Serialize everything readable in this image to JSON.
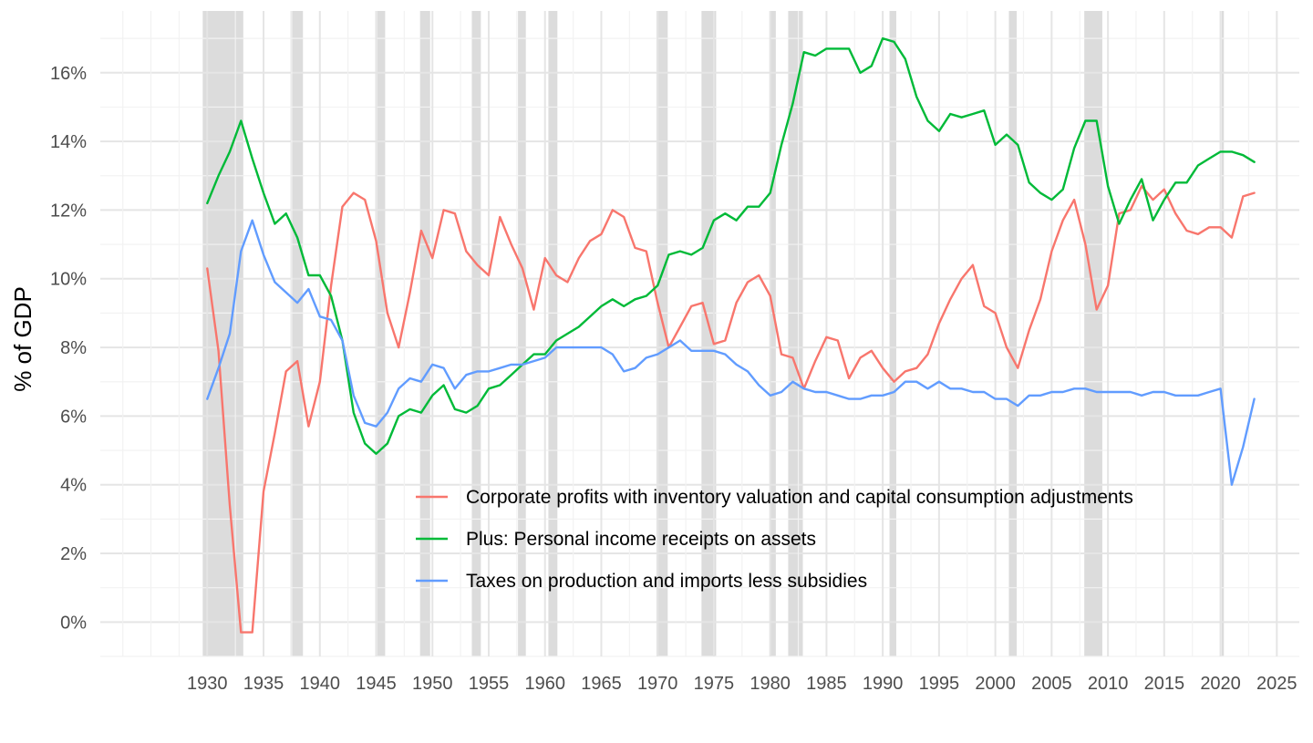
{
  "chart_data": {
    "type": "line",
    "title": "",
    "xlabel": "",
    "ylabel": "% of GDP",
    "xlim": [
      1920.5,
      2027
    ],
    "ylim": [
      -1,
      17.8
    ],
    "x_ticks": [
      1930,
      1935,
      1940,
      1945,
      1950,
      1955,
      1960,
      1965,
      1970,
      1975,
      1980,
      1985,
      1990,
      1995,
      2000,
      2005,
      2010,
      2015,
      2020,
      2025
    ],
    "y_ticks": [
      0,
      2,
      4,
      6,
      8,
      10,
      12,
      14,
      16
    ],
    "y_tick_labels": [
      "0%",
      "2%",
      "4%",
      "6%",
      "8%",
      "10%",
      "12%",
      "14%",
      "16%"
    ],
    "grid": true,
    "legend_position": "inside-bottom-center",
    "recessions": [
      [
        1929.6,
        1933.2
      ],
      [
        1937.4,
        1938.5
      ],
      [
        1945.1,
        1945.8
      ],
      [
        1948.9,
        1949.8
      ],
      [
        1953.5,
        1954.3
      ],
      [
        1957.6,
        1958.3
      ],
      [
        1960.3,
        1961.1
      ],
      [
        1969.9,
        1970.9
      ],
      [
        1973.9,
        1975.2
      ],
      [
        1980.0,
        1980.5
      ],
      [
        1981.6,
        1982.9
      ],
      [
        1990.6,
        1991.2
      ],
      [
        2001.2,
        2001.9
      ],
      [
        2007.9,
        2009.5
      ],
      [
        2020.1,
        2020.3
      ]
    ],
    "recession_color": "#dcdcdc",
    "series": [
      {
        "name": "Corporate profits with inventory valuation and capital consumption adjustments",
        "color": "#f8766d",
        "x": [
          1930,
          1931,
          1932,
          1933,
          1934,
          1935,
          1936,
          1937,
          1938,
          1939,
          1940,
          1941,
          1942,
          1943,
          1944,
          1945,
          1946,
          1947,
          1948,
          1949,
          1950,
          1951,
          1952,
          1953,
          1954,
          1955,
          1956,
          1957,
          1958,
          1959,
          1960,
          1961,
          1962,
          1963,
          1964,
          1965,
          1966,
          1967,
          1968,
          1969,
          1970,
          1971,
          1972,
          1973,
          1974,
          1975,
          1976,
          1977,
          1978,
          1979,
          1980,
          1981,
          1982,
          1983,
          1984,
          1985,
          1986,
          1987,
          1988,
          1989,
          1990,
          1991,
          1992,
          1993,
          1994,
          1995,
          1996,
          1997,
          1998,
          1999,
          2000,
          2001,
          2002,
          2003,
          2004,
          2005,
          2006,
          2007,
          2008,
          2009,
          2010,
          2011,
          2012,
          2013,
          2014,
          2015,
          2016,
          2017,
          2018,
          2019,
          2020,
          2021,
          2022,
          2023
        ],
        "values": [
          10.3,
          7.9,
          3.4,
          -0.3,
          -0.3,
          3.8,
          5.5,
          7.3,
          7.6,
          5.7,
          7.0,
          9.8,
          12.1,
          12.5,
          12.3,
          11.1,
          9.0,
          8.0,
          9.6,
          11.4,
          10.6,
          12.0,
          11.9,
          10.8,
          10.4,
          10.1,
          11.8,
          11.0,
          10.3,
          9.1,
          10.6,
          10.1,
          9.9,
          10.6,
          11.1,
          11.3,
          12.0,
          11.8,
          10.9,
          10.8,
          9.3,
          8.0,
          8.6,
          9.2,
          9.3,
          8.1,
          8.2,
          9.3,
          9.9,
          10.1,
          9.5,
          7.8,
          7.7,
          6.8,
          7.6,
          8.3,
          8.2,
          7.1,
          7.7,
          7.9,
          7.4,
          7.0,
          7.3,
          7.4,
          7.8,
          8.7,
          9.4,
          10.0,
          10.4,
          9.2,
          9.0,
          8.0,
          7.4,
          8.5,
          9.4,
          10.8,
          11.7,
          12.3,
          11.0,
          9.1,
          9.8,
          11.9,
          12.0,
          12.7,
          12.3,
          12.6,
          11.9,
          11.4,
          11.3,
          11.5,
          11.5,
          11.2,
          12.4,
          12.5
        ]
      },
      {
        "name": "Plus: Personal income receipts on assets",
        "color": "#00ba38",
        "x": [
          1930,
          1931,
          1932,
          1933,
          1934,
          1935,
          1936,
          1937,
          1938,
          1939,
          1940,
          1941,
          1942,
          1943,
          1944,
          1945,
          1946,
          1947,
          1948,
          1949,
          1950,
          1951,
          1952,
          1953,
          1954,
          1955,
          1956,
          1957,
          1958,
          1959,
          1960,
          1961,
          1962,
          1963,
          1964,
          1965,
          1966,
          1967,
          1968,
          1969,
          1970,
          1971,
          1972,
          1973,
          1974,
          1975,
          1976,
          1977,
          1978,
          1979,
          1980,
          1981,
          1982,
          1983,
          1984,
          1985,
          1986,
          1987,
          1988,
          1989,
          1990,
          1991,
          1992,
          1993,
          1994,
          1995,
          1996,
          1997,
          1998,
          1999,
          2000,
          2001,
          2002,
          2003,
          2004,
          2005,
          2006,
          2007,
          2008,
          2009,
          2010,
          2011,
          2012,
          2013,
          2014,
          2015,
          2016,
          2017,
          2018,
          2019,
          2020,
          2021,
          2022,
          2023
        ],
        "values": [
          12.2,
          13.0,
          13.7,
          14.6,
          13.5,
          12.5,
          11.6,
          11.9,
          11.2,
          10.1,
          10.1,
          9.5,
          8.2,
          6.1,
          5.2,
          4.9,
          5.2,
          6.0,
          6.2,
          6.1,
          6.6,
          6.9,
          6.2,
          6.1,
          6.3,
          6.8,
          6.9,
          7.2,
          7.5,
          7.8,
          7.8,
          8.2,
          8.4,
          8.6,
          8.9,
          9.2,
          9.4,
          9.2,
          9.4,
          9.5,
          9.8,
          10.7,
          10.8,
          10.7,
          10.9,
          11.7,
          11.9,
          11.7,
          12.1,
          12.1,
          12.5,
          13.9,
          15.1,
          16.6,
          16.5,
          16.7,
          16.7,
          16.7,
          16.0,
          16.2,
          17.0,
          16.9,
          16.4,
          15.3,
          14.6,
          14.3,
          14.8,
          14.7,
          14.8,
          14.9,
          13.9,
          14.2,
          13.9,
          12.8,
          12.5,
          12.3,
          12.6,
          13.8,
          14.6,
          14.6,
          12.7,
          11.6,
          12.3,
          12.9,
          11.7,
          12.3,
          12.8,
          12.8,
          13.3,
          13.5,
          13.7,
          13.7,
          13.6,
          13.4
        ]
      },
      {
        "name": "Taxes on production and imports less subsidies",
        "color": "#619cff",
        "x": [
          1930,
          1931,
          1932,
          1933,
          1934,
          1935,
          1936,
          1937,
          1938,
          1939,
          1940,
          1941,
          1942,
          1943,
          1944,
          1945,
          1946,
          1947,
          1948,
          1949,
          1950,
          1951,
          1952,
          1953,
          1954,
          1955,
          1956,
          1957,
          1958,
          1959,
          1960,
          1961,
          1962,
          1963,
          1964,
          1965,
          1966,
          1967,
          1968,
          1969,
          1970,
          1971,
          1972,
          1973,
          1974,
          1975,
          1976,
          1977,
          1978,
          1979,
          1980,
          1981,
          1982,
          1983,
          1984,
          1985,
          1986,
          1987,
          1988,
          1989,
          1990,
          1991,
          1992,
          1993,
          1994,
          1995,
          1996,
          1997,
          1998,
          1999,
          2000,
          2001,
          2002,
          2003,
          2004,
          2005,
          2006,
          2007,
          2008,
          2009,
          2010,
          2011,
          2012,
          2013,
          2014,
          2015,
          2016,
          2017,
          2018,
          2019,
          2020,
          2021,
          2022,
          2023
        ],
        "values": [
          6.5,
          7.4,
          8.4,
          10.8,
          11.7,
          10.7,
          9.9,
          9.6,
          9.3,
          9.7,
          8.9,
          8.8,
          8.2,
          6.6,
          5.8,
          5.7,
          6.1,
          6.8,
          7.1,
          7.0,
          7.5,
          7.4,
          6.8,
          7.2,
          7.3,
          7.3,
          7.4,
          7.5,
          7.5,
          7.6,
          7.7,
          8.0,
          8.0,
          8.0,
          8.0,
          8.0,
          7.8,
          7.3,
          7.4,
          7.7,
          7.8,
          8.0,
          8.2,
          7.9,
          7.9,
          7.9,
          7.8,
          7.5,
          7.3,
          6.9,
          6.6,
          6.7,
          7.0,
          6.8,
          6.7,
          6.7,
          6.6,
          6.5,
          6.5,
          6.6,
          6.6,
          6.7,
          7.0,
          7.0,
          6.8,
          7.0,
          6.8,
          6.8,
          6.7,
          6.7,
          6.5,
          6.5,
          6.3,
          6.6,
          6.6,
          6.7,
          6.7,
          6.8,
          6.8,
          6.7,
          6.7,
          6.7,
          6.7,
          6.6,
          6.7,
          6.7,
          6.6,
          6.6,
          6.6,
          6.7,
          6.8,
          4.0,
          5.1,
          6.5
        ]
      }
    ]
  }
}
